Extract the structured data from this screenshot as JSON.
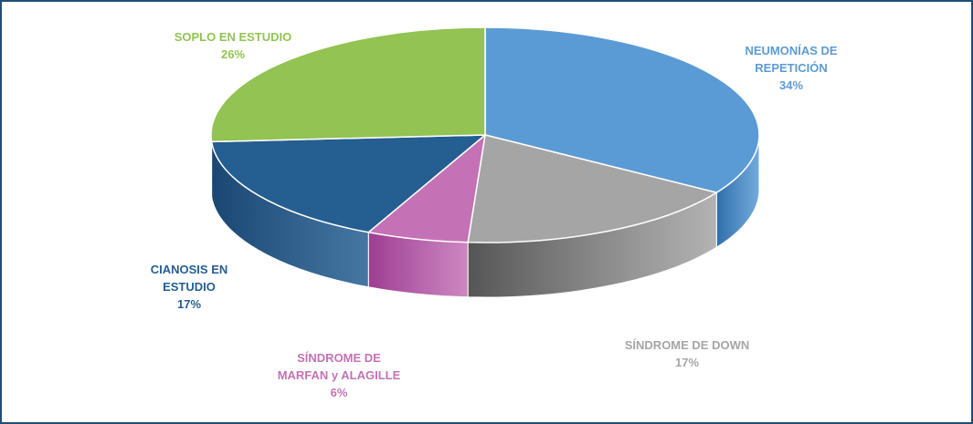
{
  "chart_data": {
    "type": "pie",
    "three_d": true,
    "title": "",
    "slices": [
      {
        "label_lines": [
          "NEUMONÍAS DE",
          "REPETICIÓN"
        ],
        "pct_label": "34%",
        "value": 34,
        "color": "#5b9bd5",
        "side": "#2f6eaa"
      },
      {
        "label_lines": [
          "SÍNDROME DE DOWN"
        ],
        "pct_label": "17%",
        "value": 17,
        "color": "#a5a5a5",
        "side": "#555555"
      },
      {
        "label_lines": [
          "SÍNDROME DE",
          "MARFAN y ALAGILLE"
        ],
        "pct_label": "6%",
        "value": 6,
        "color": "#c472b5",
        "side": "#9c3d92"
      },
      {
        "label_lines": [
          "CIANOSIS EN",
          "ESTUDIO"
        ],
        "pct_label": "17%",
        "value": 17,
        "color": "#255e91",
        "side": "#1a4673"
      },
      {
        "label_lines": [
          "SOPLO EN ESTUDIO"
        ],
        "pct_label": "26%",
        "value": 26,
        "color": "#92c353",
        "side": "#6b9a35"
      }
    ]
  }
}
